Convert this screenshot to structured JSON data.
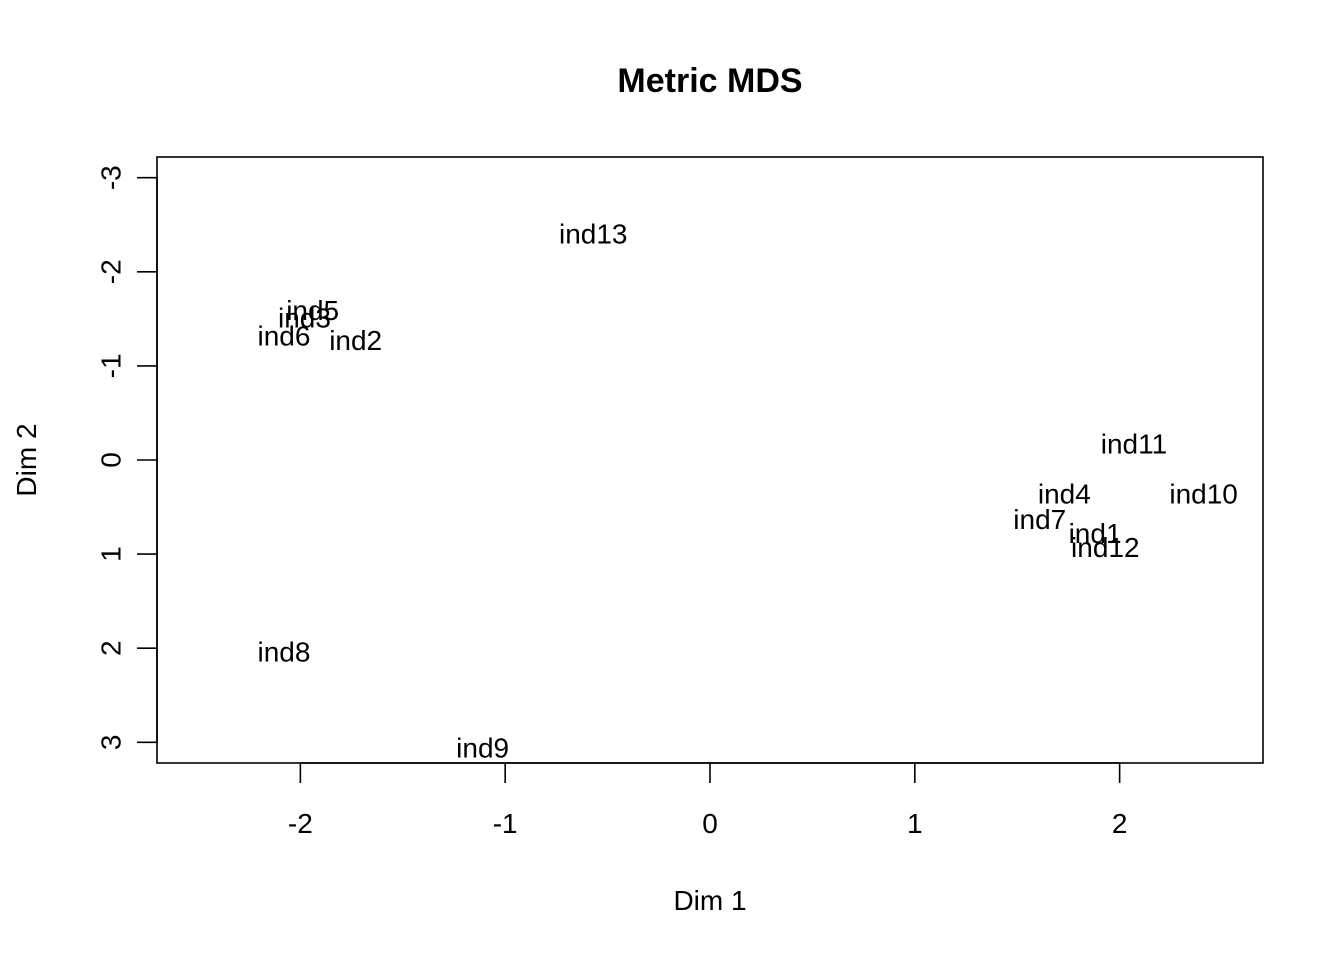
{
  "chart_data": {
    "type": "scatter",
    "title": "Metric MDS",
    "xlabel": "Dim 1",
    "ylabel": "Dim 2",
    "xlim": [
      -2.7,
      2.7
    ],
    "ylim": [
      3.22,
      -3.22
    ],
    "y_reversed": true,
    "x_ticks": [
      -2,
      -1,
      0,
      1,
      2
    ],
    "x_tick_labels": [
      "-2",
      "-1",
      "0",
      "1",
      "2"
    ],
    "y_ticks": [
      -3,
      -2,
      -1,
      0,
      1,
      2,
      3
    ],
    "y_tick_labels": [
      "-3",
      "-2",
      "-1",
      "0",
      "1",
      "2",
      "3"
    ],
    "grid": false,
    "legend": false,
    "marker": "text-labels",
    "points": [
      {
        "label": "ind13",
        "x": -0.57,
        "y": -2.4
      },
      {
        "label": "ind5",
        "x": -1.94,
        "y": -1.59
      },
      {
        "label": "ind3",
        "x": -1.98,
        "y": -1.51
      },
      {
        "label": "ind6",
        "x": -2.08,
        "y": -1.32
      },
      {
        "label": "ind2",
        "x": -1.73,
        "y": -1.27
      },
      {
        "label": "ind11",
        "x": 2.07,
        "y": -0.17
      },
      {
        "label": "ind10",
        "x": 2.41,
        "y": 0.36
      },
      {
        "label": "ind4",
        "x": 1.73,
        "y": 0.36
      },
      {
        "label": "ind7",
        "x": 1.61,
        "y": 0.63
      },
      {
        "label": "ind1",
        "x": 1.88,
        "y": 0.78
      },
      {
        "label": "ind12",
        "x": 1.93,
        "y": 0.93
      },
      {
        "label": "ind8",
        "x": -2.08,
        "y": 2.04
      },
      {
        "label": "ind9",
        "x": -1.11,
        "y": 3.06
      }
    ]
  }
}
